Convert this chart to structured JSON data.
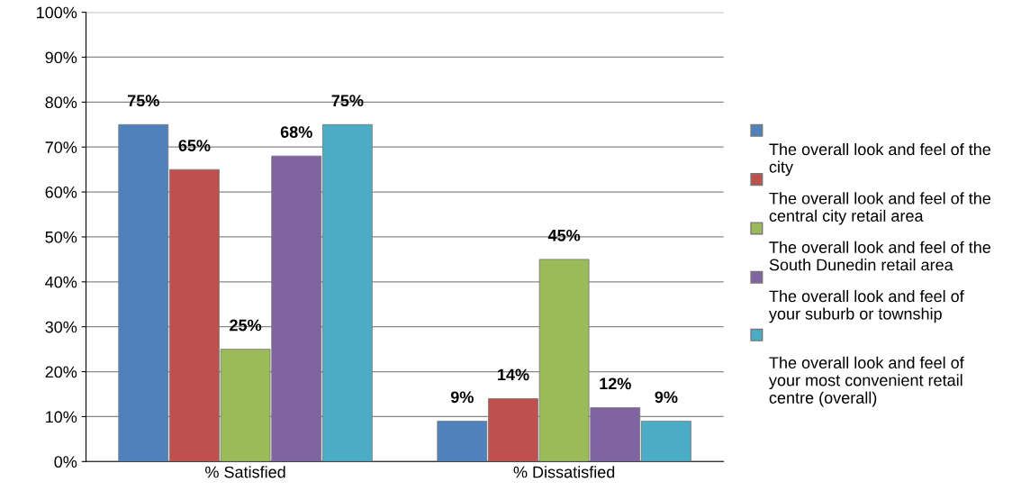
{
  "chart_data": {
    "type": "bar",
    "categories": [
      "% Satisfied",
      "% Dissatisfied"
    ],
    "series": [
      {
        "name": "The overall look and feel of the city",
        "color": "#4f81bd",
        "values": [
          75,
          9
        ],
        "value_labels": [
          "75%",
          "9%"
        ]
      },
      {
        "name": "The overall look and feel of the central city retail area",
        "color": "#c0504d",
        "values": [
          65,
          14
        ],
        "value_labels": [
          "65%",
          "14%"
        ]
      },
      {
        "name": "The overall look and feel of the South Dunedin retail area",
        "color": "#9bbb59",
        "values": [
          25,
          45
        ],
        "value_labels": [
          "25%",
          "45%"
        ]
      },
      {
        "name": "The overall look and feel of your suburb or township",
        "color": "#8064a2",
        "values": [
          68,
          12
        ],
        "value_labels": [
          "68%",
          "12%"
        ]
      },
      {
        "name": "The overall look and feel of your most convenient retail centre (overall)",
        "color": "#4bacc6",
        "values": [
          75,
          9
        ],
        "value_labels": [
          "75%",
          "9%"
        ]
      }
    ],
    "ylim": [
      0,
      100
    ],
    "yticks": [
      {
        "value": 0,
        "label": "0%"
      },
      {
        "value": 10,
        "label": "10%"
      },
      {
        "value": 20,
        "label": "20%"
      },
      {
        "value": 30,
        "label": "30%"
      },
      {
        "value": 40,
        "label": "40%"
      },
      {
        "value": 50,
        "label": "50%"
      },
      {
        "value": 60,
        "label": "60%"
      },
      {
        "value": 70,
        "label": "70%"
      },
      {
        "value": 80,
        "label": "80%"
      },
      {
        "value": 90,
        "label": "90%"
      },
      {
        "value": 100,
        "label": "100%"
      }
    ],
    "grid": "y",
    "legend": "right"
  }
}
